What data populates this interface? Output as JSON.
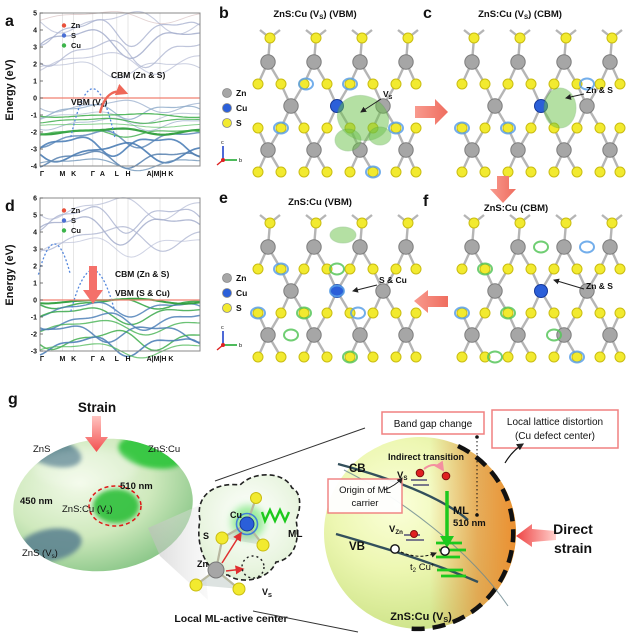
{
  "colors": {
    "band_zn": "#e8503a",
    "band_s": "#4a6fd4",
    "band_cu": "#3cb44a",
    "fermi_line": "#f08070",
    "atom_zn": "#a6a6a6",
    "atom_cu": "#2b5fd9",
    "atom_s": "#f2ea2f",
    "arrow_salmon": "#f4806e",
    "ml_green": "#1dc91d",
    "label_blue": "#1535e0",
    "annotation_red": "#e82020",
    "box_border": "#f08080",
    "isosurface_green": "#6cc24a",
    "ring_blue": "#5aa0e8",
    "ring_green": "#57c65a"
  },
  "panel_a": {
    "letter": "a",
    "ylabel": "Energy (eV)",
    "yticks": [
      "5",
      "4",
      "3",
      "2",
      "1",
      "0",
      "-1",
      "-2",
      "-3",
      "-4"
    ],
    "xticks": [
      "Γ",
      "M",
      "K",
      "Γ",
      "A",
      "L",
      "H",
      "A|M|H K"
    ],
    "legend": [
      {
        "label": "Zn",
        "color": "#e8503a"
      },
      {
        "label": "S",
        "color": "#4a6fd4"
      },
      {
        "label": "Cu",
        "color": "#3cb44a"
      }
    ],
    "cbm_label": "CBM (Zn & S)",
    "vbm_parts": [
      {
        "t": "VBM (V"
      },
      {
        "t": "S",
        "sub": true
      },
      {
        "t": ")"
      }
    ]
  },
  "panel_b": {
    "letter": "b",
    "title_parts": [
      {
        "t": "ZnS:Cu (V"
      },
      {
        "t": "S",
        "sub": true
      },
      {
        "t": ") (VBM)"
      }
    ],
    "legend": [
      {
        "label": "Zn",
        "color": "#a6a6a6"
      },
      {
        "label": "Cu",
        "color": "#2b5fd9"
      },
      {
        "label": "S",
        "color": "#f2ea2f"
      }
    ],
    "annotation_parts": [
      {
        "t": "V"
      },
      {
        "t": "S",
        "sub": true
      }
    ],
    "axis": {
      "c": "c",
      "b": "b"
    }
  },
  "panel_c": {
    "letter": "c",
    "title_parts": [
      {
        "t": "ZnS:Cu (V"
      },
      {
        "t": "S",
        "sub": true
      },
      {
        "t": ") (CBM)"
      }
    ],
    "annotation": "Zn & S"
  },
  "panel_d": {
    "letter": "d",
    "ylabel": "Energy (eV)",
    "yticks": [
      "6",
      "5",
      "4",
      "3",
      "2",
      "1",
      "0",
      "-1",
      "-2",
      "-3"
    ],
    "xticks": [
      "Γ",
      "M",
      "K",
      "Γ",
      "A",
      "L",
      "H",
      "A|M|H K"
    ],
    "legend": [
      {
        "label": "Zn",
        "color": "#e8503a"
      },
      {
        "label": "S",
        "color": "#4a6fd4"
      },
      {
        "label": "Cu",
        "color": "#3cb44a"
      }
    ],
    "cbm_label": "CBM (Zn & S)",
    "vbm_label": "VBM (S & Cu)"
  },
  "panel_e": {
    "letter": "e",
    "title": "ZnS:Cu (VBM)",
    "legend": [
      {
        "label": "Zn",
        "color": "#a6a6a6"
      },
      {
        "label": "Cu",
        "color": "#2b5fd9"
      },
      {
        "label": "S",
        "color": "#f2ea2f"
      }
    ],
    "annotation": "S & Cu",
    "axis": {
      "c": "c",
      "b": "b"
    }
  },
  "panel_f": {
    "letter": "f",
    "title": "ZnS:Cu (CBM)",
    "annotation": "Zn & S"
  },
  "panel_g": {
    "letter": "g",
    "strain": "Strain",
    "ellipsoid": {
      "zns": "ZnS",
      "znscu": "ZnS:Cu",
      "nm450": "450 nm",
      "nm510": "510 nm",
      "znscu_vs_parts": [
        {
          "t": "ZnS:Cu (V"
        },
        {
          "t": "s",
          "sub": true
        },
        {
          "t": ")"
        }
      ],
      "zns_vs_parts": [
        {
          "t": "ZnS (V"
        },
        {
          "t": "s",
          "sub": true
        },
        {
          "t": ")"
        }
      ]
    },
    "center": {
      "cu": "Cu",
      "s": "S",
      "zn": "Zn",
      "ml": "ML",
      "vs_parts": [
        {
          "t": "V"
        },
        {
          "t": "S",
          "sub": true
        }
      ],
      "caption": "Local ML-active center"
    },
    "diagram": {
      "box_bandgap": "Band gap change",
      "box_lattice_line1": "Local lattice distortion",
      "box_lattice_line2": "(Cu defect center)",
      "box_origin_line1": "Origin of ML",
      "box_origin_line2": "carrier",
      "indirect": "Indirect transition",
      "cb": "CB",
      "vb": "VB",
      "vs_parts": [
        {
          "t": "V"
        },
        {
          "t": "S",
          "sub": true
        }
      ],
      "vzn_parts": [
        {
          "t": "V"
        },
        {
          "t": "Zn",
          "sub": true
        }
      ],
      "t2cu_parts": [
        {
          "t": "t"
        },
        {
          "t": "2",
          "sub": true
        },
        {
          "t": " Cu"
        },
        {
          "t": "+",
          "sup": true
        }
      ],
      "ml": "ML",
      "nm": "510 nm",
      "direct_line1": "Direct",
      "direct_line2": "strain",
      "sphere_caption_parts": [
        {
          "t": "ZnS:Cu (V"
        },
        {
          "t": "S",
          "sub": true
        },
        {
          "t": ")"
        }
      ]
    }
  }
}
